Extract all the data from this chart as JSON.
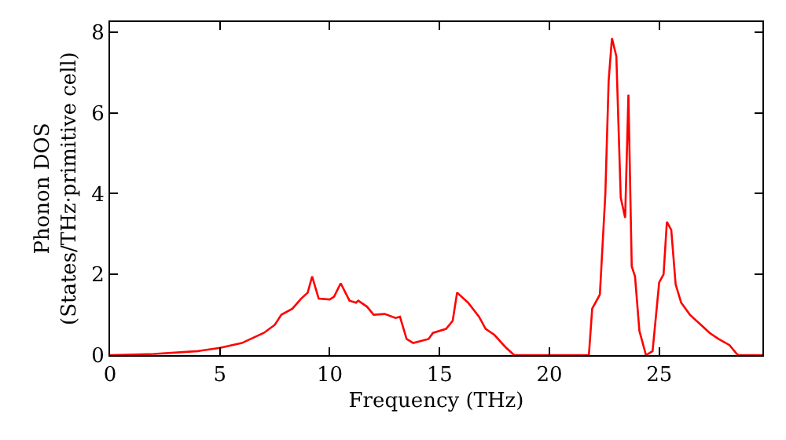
{
  "chart_data": {
    "type": "line",
    "xlabel": "Frequency (THz)",
    "ylabel": "Phonon DOS\n(States/THz·primitive cell)",
    "xlim": [
      0,
      29.7
    ],
    "ylim": [
      0,
      8.25
    ],
    "xticks": [
      0,
      5,
      10,
      15,
      20,
      25
    ],
    "yticks": [
      0,
      2,
      4,
      6,
      8
    ],
    "marker": "none",
    "line_style": "solid",
    "series": [
      {
        "color": "#ff0000",
        "x": [
          0,
          2,
          4,
          5,
          6,
          7,
          7.5,
          7.8,
          8.3,
          8.7,
          9.0,
          9.2,
          9.5,
          10.0,
          10.2,
          10.5,
          10.9,
          11.2,
          11.3,
          11.7,
          12.0,
          12.5,
          13.0,
          13.2,
          13.5,
          13.8,
          14.5,
          14.7,
          15.3,
          15.6,
          15.8,
          16.3,
          16.8,
          17.1,
          17.5,
          18.0,
          18.4,
          21.8,
          21.95,
          22.3,
          22.55,
          22.7,
          22.85,
          23.05,
          23.25,
          23.45,
          23.6,
          23.75,
          23.9,
          24.1,
          24.4,
          24.7,
          25.0,
          25.2,
          25.35,
          25.55,
          25.75,
          26.0,
          26.4,
          27.0,
          27.3,
          27.7,
          28.2,
          28.5,
          28.6,
          29.7
        ],
        "values": [
          0,
          0.03,
          0.1,
          0.18,
          0.3,
          0.55,
          0.75,
          1.0,
          1.15,
          1.4,
          1.55,
          1.95,
          1.4,
          1.38,
          1.45,
          1.78,
          1.35,
          1.3,
          1.35,
          1.2,
          1.0,
          1.02,
          0.92,
          0.95,
          0.4,
          0.3,
          0.4,
          0.55,
          0.65,
          0.85,
          1.55,
          1.3,
          0.95,
          0.65,
          0.5,
          0.2,
          0,
          0,
          1.15,
          1.5,
          4.0,
          6.8,
          7.85,
          7.4,
          3.9,
          3.4,
          6.45,
          2.2,
          1.95,
          0.6,
          0,
          0.1,
          1.8,
          2.0,
          3.3,
          3.1,
          1.75,
          1.3,
          1.0,
          0.7,
          0.55,
          0.4,
          0.25,
          0.05,
          0,
          0
        ]
      }
    ]
  }
}
